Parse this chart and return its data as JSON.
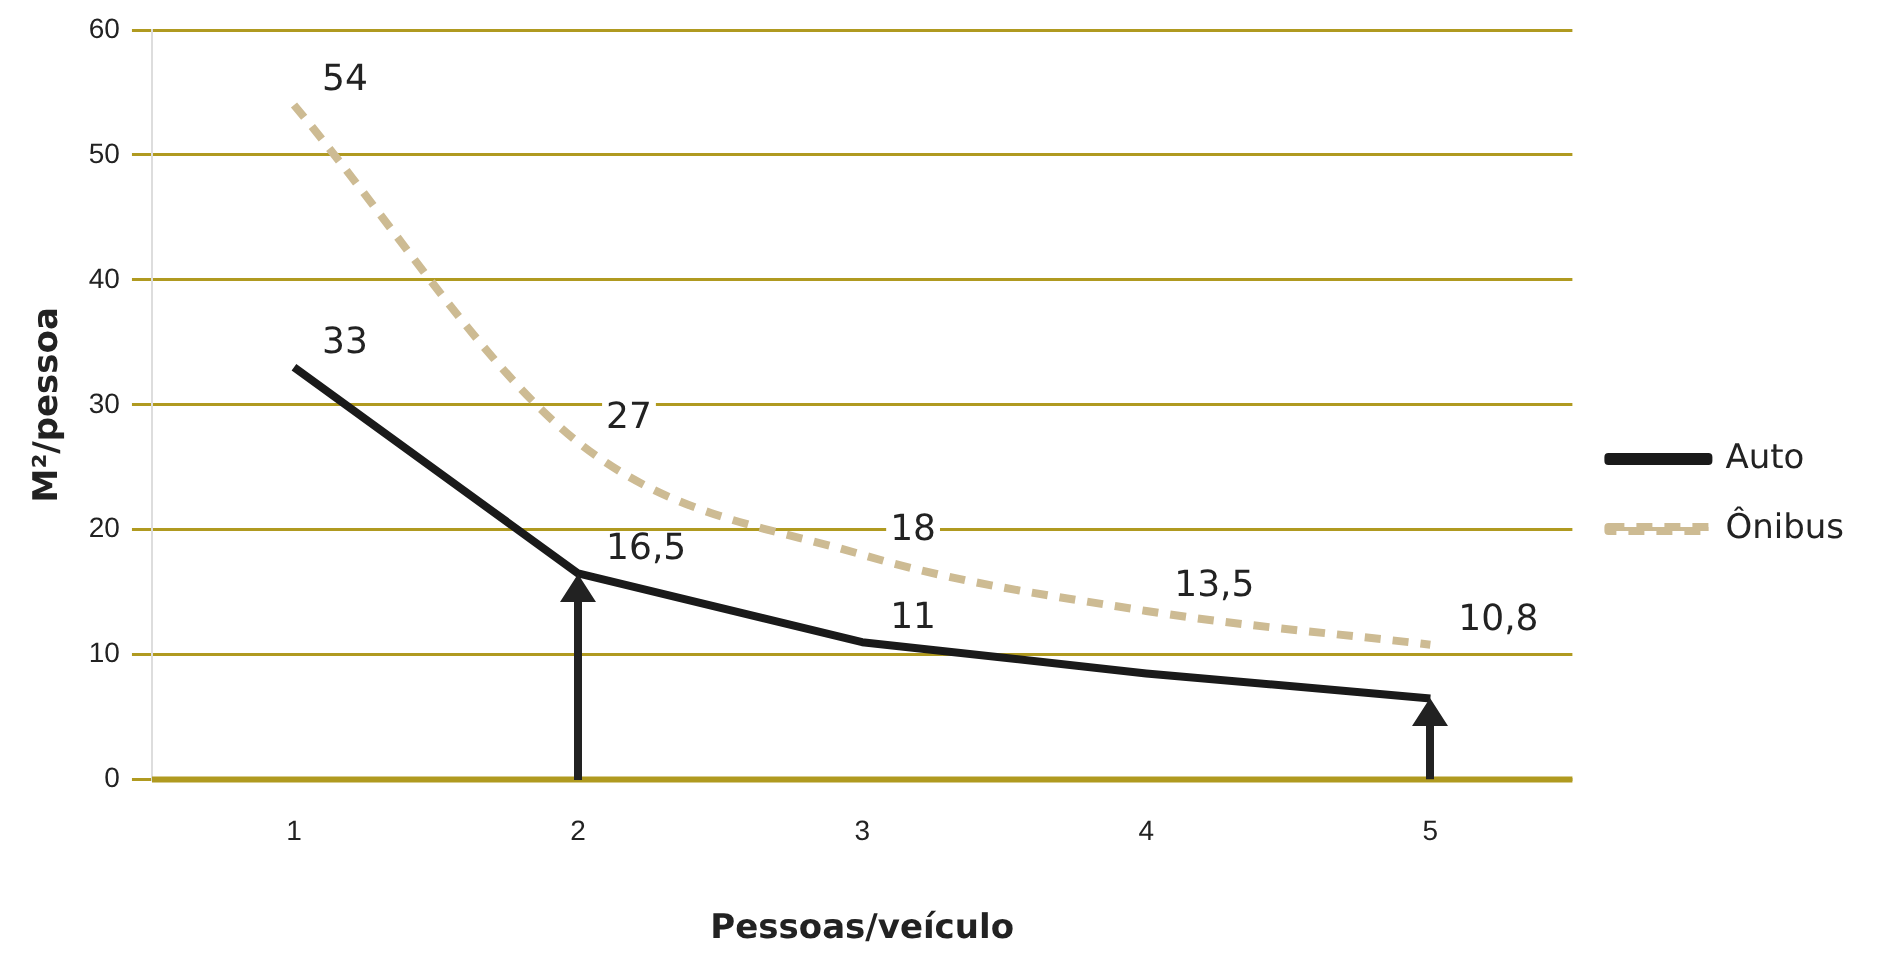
{
  "chart_data": {
    "type": "line",
    "xlabel": "Pessoas/veículo",
    "ylabel": "M²/pessoa",
    "categories": [
      "1",
      "2",
      "3",
      "4",
      "5"
    ],
    "series": [
      {
        "name": "Auto",
        "color": "#1a1a1a",
        "values": [
          33,
          16.5,
          11,
          8.5,
          6.5
        ],
        "value_labels": [
          "33",
          "16,5",
          "11",
          null,
          null
        ],
        "line_style": "solid"
      },
      {
        "name": "Ônibus",
        "color": "#cdbb93",
        "values": [
          54,
          27,
          18,
          13.5,
          10.8
        ],
        "value_labels": [
          "54",
          "27",
          "18",
          "13,5",
          "10,8"
        ],
        "line_style": "dashed"
      }
    ],
    "ylim": [
      0,
      60
    ],
    "yticks": [
      0,
      10,
      20,
      30,
      40,
      50,
      60
    ],
    "grid": "y",
    "legend": "right",
    "marker": "none"
  }
}
